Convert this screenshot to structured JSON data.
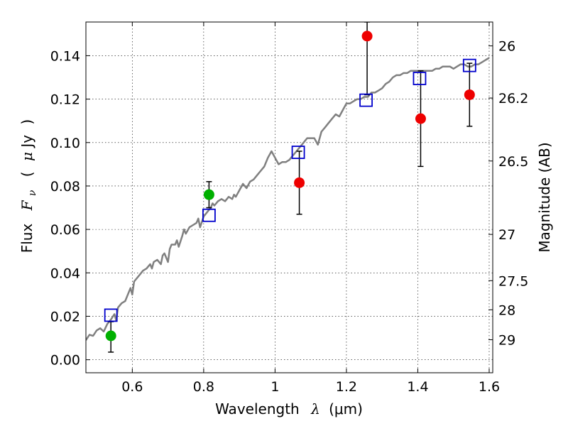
{
  "chart_data": {
    "type": "scatter",
    "title": "",
    "xlabel_text": "Wavelength",
    "xlabel_symbol": "λ",
    "xlabel_unit": "(μm)",
    "ylabel_text": "Flux",
    "ylabel_symbol": "F",
    "ylabel_subscript": "ν",
    "ylabel_unit_open": "(",
    "ylabel_unit_mu": "μ",
    "ylabel_unit": "Jy",
    "ylabel_unit_close": ")",
    "y2label": "Magnitude (AB)",
    "xlim": [
      0.47,
      1.61
    ],
    "ylim": [
      -0.006,
      0.1555
    ],
    "grid": true,
    "x_ticks": [
      {
        "value": 0.6,
        "label": "0.6"
      },
      {
        "value": 0.8,
        "label": "0.8"
      },
      {
        "value": 1.0,
        "label": "1"
      },
      {
        "value": 1.2,
        "label": "1.2"
      },
      {
        "value": 1.4,
        "label": "1.4"
      },
      {
        "value": 1.6,
        "label": "1.6"
      }
    ],
    "y_ticks": [
      {
        "value": 0.0,
        "label": "0.00"
      },
      {
        "value": 0.02,
        "label": "0.02"
      },
      {
        "value": 0.04,
        "label": "0.04"
      },
      {
        "value": 0.06,
        "label": "0.06"
      },
      {
        "value": 0.08,
        "label": "0.08"
      },
      {
        "value": 0.1,
        "label": "0.10"
      },
      {
        "value": 0.12,
        "label": "0.12"
      },
      {
        "value": 0.14,
        "label": "0.14"
      }
    ],
    "y2_ticks": [
      {
        "label": "26",
        "flux": 0.1445
      },
      {
        "label": "26.2",
        "flux": 0.1205
      },
      {
        "label": "26.5",
        "flux": 0.0915
      },
      {
        "label": "27",
        "flux": 0.0577
      },
      {
        "label": "27.5",
        "flux": 0.0364
      },
      {
        "label": "28",
        "flux": 0.023
      },
      {
        "label": "29",
        "flux": 0.0092
      }
    ],
    "series": [
      {
        "kind": "model-spectrum",
        "color": "#808080",
        "points": [
          [
            0.47,
            0.009
          ],
          [
            0.48,
            0.0115
          ],
          [
            0.49,
            0.011
          ],
          [
            0.5,
            0.0135
          ],
          [
            0.51,
            0.0145
          ],
          [
            0.52,
            0.013
          ],
          [
            0.53,
            0.0165
          ],
          [
            0.54,
            0.0185
          ],
          [
            0.55,
            0.021
          ],
          [
            0.555,
            0.018
          ],
          [
            0.56,
            0.024
          ],
          [
            0.57,
            0.026
          ],
          [
            0.58,
            0.027
          ],
          [
            0.59,
            0.031
          ],
          [
            0.595,
            0.033
          ],
          [
            0.6,
            0.03
          ],
          [
            0.605,
            0.036
          ],
          [
            0.61,
            0.037
          ],
          [
            0.62,
            0.039
          ],
          [
            0.63,
            0.041
          ],
          [
            0.64,
            0.042
          ],
          [
            0.65,
            0.044
          ],
          [
            0.655,
            0.042
          ],
          [
            0.66,
            0.045
          ],
          [
            0.67,
            0.046
          ],
          [
            0.68,
            0.044
          ],
          [
            0.685,
            0.048
          ],
          [
            0.69,
            0.049
          ],
          [
            0.7,
            0.045
          ],
          [
            0.705,
            0.051
          ],
          [
            0.71,
            0.053
          ],
          [
            0.72,
            0.053
          ],
          [
            0.725,
            0.055
          ],
          [
            0.73,
            0.052
          ],
          [
            0.74,
            0.057
          ],
          [
            0.745,
            0.06
          ],
          [
            0.75,
            0.058
          ],
          [
            0.76,
            0.061
          ],
          [
            0.77,
            0.062
          ],
          [
            0.78,
            0.063
          ],
          [
            0.785,
            0.065
          ],
          [
            0.79,
            0.061
          ],
          [
            0.8,
            0.066
          ],
          [
            0.81,
            0.068
          ],
          [
            0.82,
            0.07
          ],
          [
            0.825,
            0.072
          ],
          [
            0.83,
            0.071
          ],
          [
            0.84,
            0.073
          ],
          [
            0.85,
            0.074
          ],
          [
            0.86,
            0.073
          ],
          [
            0.87,
            0.075
          ],
          [
            0.88,
            0.074
          ],
          [
            0.885,
            0.076
          ],
          [
            0.89,
            0.075
          ],
          [
            0.9,
            0.078
          ],
          [
            0.91,
            0.081
          ],
          [
            0.92,
            0.079
          ],
          [
            0.93,
            0.082
          ],
          [
            0.94,
            0.083
          ],
          [
            0.95,
            0.085
          ],
          [
            0.96,
            0.087
          ],
          [
            0.97,
            0.089
          ],
          [
            0.98,
            0.093
          ],
          [
            0.99,
            0.096
          ],
          [
            1.0,
            0.093
          ],
          [
            1.01,
            0.09
          ],
          [
            1.02,
            0.091
          ],
          [
            1.03,
            0.091
          ],
          [
            1.04,
            0.092
          ],
          [
            1.05,
            0.094
          ],
          [
            1.06,
            0.096
          ],
          [
            1.07,
            0.098
          ],
          [
            1.08,
            0.1
          ],
          [
            1.09,
            0.102
          ],
          [
            1.1,
            0.102
          ],
          [
            1.11,
            0.102
          ],
          [
            1.12,
            0.099
          ],
          [
            1.13,
            0.105
          ],
          [
            1.14,
            0.107
          ],
          [
            1.15,
            0.109
          ],
          [
            1.16,
            0.111
          ],
          [
            1.17,
            0.113
          ],
          [
            1.18,
            0.112
          ],
          [
            1.19,
            0.115
          ],
          [
            1.2,
            0.118
          ],
          [
            1.21,
            0.118
          ],
          [
            1.22,
            0.119
          ],
          [
            1.23,
            0.12
          ],
          [
            1.24,
            0.12
          ],
          [
            1.25,
            0.121
          ],
          [
            1.26,
            0.121
          ],
          [
            1.27,
            0.123
          ],
          [
            1.28,
            0.123
          ],
          [
            1.29,
            0.124
          ],
          [
            1.3,
            0.125
          ],
          [
            1.31,
            0.127
          ],
          [
            1.32,
            0.128
          ],
          [
            1.33,
            0.13
          ],
          [
            1.34,
            0.131
          ],
          [
            1.35,
            0.131
          ],
          [
            1.36,
            0.132
          ],
          [
            1.37,
            0.132
          ],
          [
            1.38,
            0.133
          ],
          [
            1.39,
            0.133
          ],
          [
            1.4,
            0.133
          ],
          [
            1.41,
            0.133
          ],
          [
            1.42,
            0.133
          ],
          [
            1.43,
            0.133
          ],
          [
            1.44,
            0.133
          ],
          [
            1.45,
            0.134
          ],
          [
            1.46,
            0.134
          ],
          [
            1.47,
            0.135
          ],
          [
            1.48,
            0.135
          ],
          [
            1.49,
            0.135
          ],
          [
            1.5,
            0.134
          ],
          [
            1.51,
            0.135
          ],
          [
            1.52,
            0.136
          ],
          [
            1.53,
            0.136
          ],
          [
            1.54,
            0.135
          ],
          [
            1.55,
            0.135
          ],
          [
            1.56,
            0.136
          ],
          [
            1.57,
            0.136
          ],
          [
            1.58,
            0.137
          ],
          [
            1.59,
            0.138
          ],
          [
            1.6,
            0.139
          ]
        ]
      },
      {
        "kind": "model-photometry",
        "marker": "open-square",
        "color": "#0000cc",
        "points": [
          {
            "x": 0.54,
            "y": 0.0205
          },
          {
            "x": 0.815,
            "y": 0.0665
          },
          {
            "x": 1.065,
            "y": 0.0955
          },
          {
            "x": 1.255,
            "y": 0.1195
          },
          {
            "x": 1.405,
            "y": 0.1295
          },
          {
            "x": 1.545,
            "y": 0.1355
          }
        ]
      },
      {
        "kind": "observed-green",
        "marker": "filled-circle",
        "color": "#00b000",
        "points": [
          {
            "x": 0.54,
            "y": 0.011,
            "lo": 0.0035,
            "hi": 0.0175
          },
          {
            "x": 0.815,
            "y": 0.076,
            "lo": 0.07,
            "hi": 0.082
          }
        ]
      },
      {
        "kind": "observed-red",
        "marker": "filled-circle",
        "color": "#ee0000",
        "points": [
          {
            "x": 1.068,
            "y": 0.0815,
            "lo": 0.067,
            "hi": 0.096
          },
          {
            "x": 1.258,
            "y": 0.149,
            "lo": 0.122,
            "hi": 0.1555
          },
          {
            "x": 1.408,
            "y": 0.111,
            "lo": 0.089,
            "hi": 0.133
          },
          {
            "x": 1.545,
            "y": 0.122,
            "lo": 0.1075,
            "hi": 0.1365
          }
        ]
      }
    ]
  }
}
